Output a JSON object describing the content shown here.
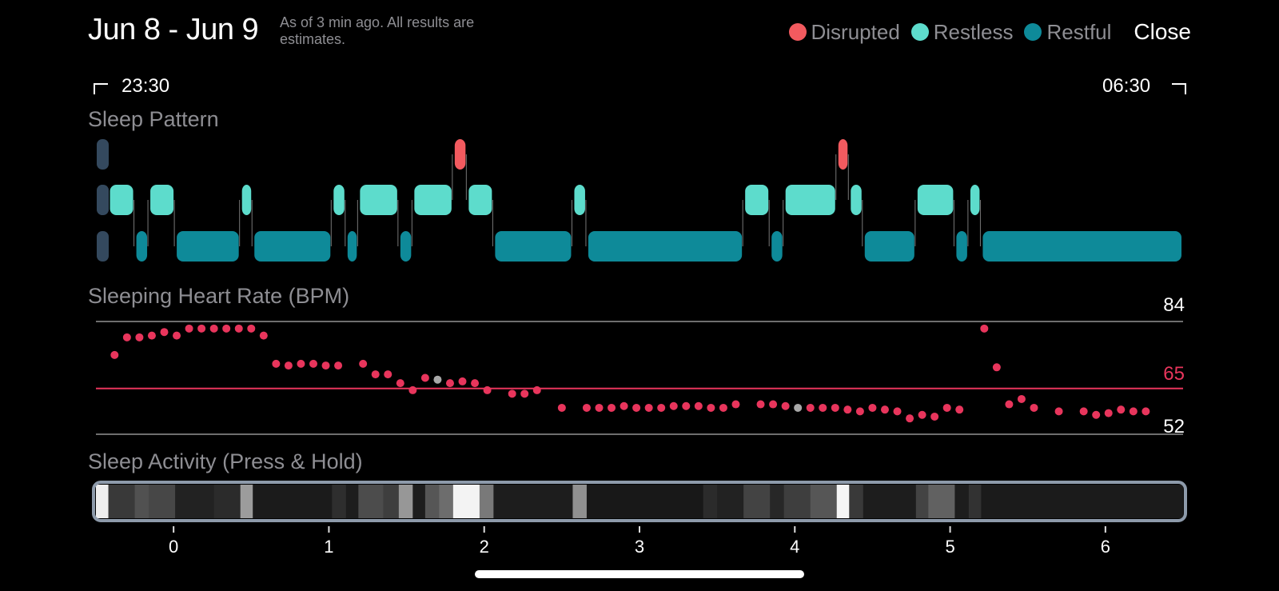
{
  "header": {
    "date_range": "Jun 8 - Jun 9",
    "note": "As of 3 min ago. All results are estimates.",
    "close_label": "Close"
  },
  "legend": [
    {
      "label": "Disrupted",
      "color": "#f25a5f"
    },
    {
      "label": "Restless",
      "color": "#5ddccc"
    },
    {
      "label": "Restful",
      "color": "#0e8a99"
    }
  ],
  "time_range": {
    "start": "23:30",
    "end": "06:30"
  },
  "sleep_pattern": {
    "title": "Sleep Pattern",
    "x_range_hours": [
      0,
      7
    ],
    "colors": {
      "disrupted": "#f25a5f",
      "restless": "#5ddccc",
      "restful": "#0e8a99",
      "awake": "#34495e"
    },
    "segments": [
      {
        "state": "awake",
        "start": 0.0,
        "end": 0.08
      },
      {
        "state": "restless",
        "start": 0.08,
        "end": 0.25
      },
      {
        "state": "restful",
        "start": 0.25,
        "end": 0.34
      },
      {
        "state": "restless",
        "start": 0.34,
        "end": 0.51
      },
      {
        "state": "restful",
        "start": 0.51,
        "end": 0.93
      },
      {
        "state": "restless",
        "start": 0.93,
        "end": 1.01
      },
      {
        "state": "restful",
        "start": 1.01,
        "end": 1.52
      },
      {
        "state": "restless",
        "start": 1.52,
        "end": 1.61
      },
      {
        "state": "restful",
        "start": 1.61,
        "end": 1.69
      },
      {
        "state": "restless",
        "start": 1.69,
        "end": 1.95
      },
      {
        "state": "restful",
        "start": 1.95,
        "end": 2.04
      },
      {
        "state": "restless",
        "start": 2.04,
        "end": 2.3
      },
      {
        "state": "disrupted",
        "start": 2.3,
        "end": 2.39
      },
      {
        "state": "restless",
        "start": 2.39,
        "end": 2.56
      },
      {
        "state": "restful",
        "start": 2.56,
        "end": 3.07
      },
      {
        "state": "restless",
        "start": 3.07,
        "end": 3.16
      },
      {
        "state": "restful",
        "start": 3.16,
        "end": 4.17
      },
      {
        "state": "restless",
        "start": 4.17,
        "end": 4.34
      },
      {
        "state": "restful",
        "start": 4.34,
        "end": 4.43
      },
      {
        "state": "restless",
        "start": 4.43,
        "end": 4.77
      },
      {
        "state": "disrupted",
        "start": 4.77,
        "end": 4.85
      },
      {
        "state": "restless",
        "start": 4.85,
        "end": 4.94
      },
      {
        "state": "restful",
        "start": 4.94,
        "end": 5.28
      },
      {
        "state": "restless",
        "start": 5.28,
        "end": 5.53
      },
      {
        "state": "restful",
        "start": 5.53,
        "end": 5.62
      },
      {
        "state": "restless",
        "start": 5.62,
        "end": 5.7
      },
      {
        "state": "restful",
        "start": 5.7,
        "end": 7.0
      }
    ]
  },
  "heart_rate": {
    "title": "Sleeping Heart Rate (BPM)",
    "max_label": "84",
    "avg_label": "65",
    "min_label": "52",
    "max": 84,
    "avg": 65,
    "min": 52,
    "x_range_hours": [
      0,
      7
    ],
    "dot_color": "#e8355c",
    "highlight_color": "#a8a8a8",
    "avg_line_color": "#e8355c",
    "points": [
      [
        0.12,
        74.5
      ],
      [
        0.2,
        79.5
      ],
      [
        0.28,
        79.5
      ],
      [
        0.36,
        80
      ],
      [
        0.44,
        81
      ],
      [
        0.52,
        80
      ],
      [
        0.6,
        82
      ],
      [
        0.68,
        82
      ],
      [
        0.76,
        82
      ],
      [
        0.84,
        82
      ],
      [
        0.92,
        82
      ],
      [
        1.0,
        82
      ],
      [
        1.08,
        80
      ],
      [
        1.16,
        72
      ],
      [
        1.24,
        71.5
      ],
      [
        1.32,
        72
      ],
      [
        1.4,
        72
      ],
      [
        1.48,
        71.5
      ],
      [
        1.56,
        71.5
      ],
      [
        1.72,
        72
      ],
      [
        1.8,
        69
      ],
      [
        1.88,
        69
      ],
      [
        1.96,
        66.5
      ],
      [
        2.04,
        64.5
      ],
      [
        2.12,
        68
      ],
      [
        2.2,
        67.5,
        "h"
      ],
      [
        2.28,
        66.5
      ],
      [
        2.36,
        67
      ],
      [
        2.44,
        66.5
      ],
      [
        2.52,
        64.5
      ],
      [
        2.68,
        63.5
      ],
      [
        2.76,
        63.5
      ],
      [
        2.84,
        64.5
      ],
      [
        3.0,
        59.5
      ],
      [
        3.16,
        59.5
      ],
      [
        3.24,
        59.5
      ],
      [
        3.32,
        59.5
      ],
      [
        3.4,
        60
      ],
      [
        3.48,
        59.5
      ],
      [
        3.56,
        59.5
      ],
      [
        3.64,
        59.5
      ],
      [
        3.72,
        60
      ],
      [
        3.8,
        60
      ],
      [
        3.88,
        60
      ],
      [
        3.96,
        59.5
      ],
      [
        4.04,
        59.5
      ],
      [
        4.12,
        60.5
      ],
      [
        4.28,
        60.5
      ],
      [
        4.36,
        60.5
      ],
      [
        4.44,
        60
      ],
      [
        4.52,
        59.5,
        "h"
      ],
      [
        4.6,
        59.5
      ],
      [
        4.68,
        59.5
      ],
      [
        4.76,
        59.5
      ],
      [
        4.84,
        59
      ],
      [
        4.92,
        58.5
      ],
      [
        5.0,
        59.5
      ],
      [
        5.08,
        59
      ],
      [
        5.16,
        58.5
      ],
      [
        5.24,
        56.5
      ],
      [
        5.32,
        57.5
      ],
      [
        5.4,
        57
      ],
      [
        5.48,
        59.5
      ],
      [
        5.56,
        59
      ],
      [
        5.72,
        82
      ],
      [
        5.8,
        71
      ],
      [
        5.88,
        60.5
      ],
      [
        5.96,
        62
      ],
      [
        6.04,
        59.5
      ],
      [
        6.2,
        58.5
      ],
      [
        6.36,
        58.5
      ],
      [
        6.44,
        57.5
      ],
      [
        6.52,
        58
      ],
      [
        6.6,
        59
      ],
      [
        6.68,
        58.5
      ],
      [
        6.76,
        58.5
      ]
    ]
  },
  "sleep_activity": {
    "title": "Sleep Activity (Press & Hold)",
    "x_range_hours": [
      0,
      7
    ],
    "bars": [
      {
        "start": 0.0,
        "end": 0.08,
        "value": 0.95
      },
      {
        "start": 0.08,
        "end": 0.25,
        "value": 0.18
      },
      {
        "start": 0.25,
        "end": 0.34,
        "value": 0.28
      },
      {
        "start": 0.34,
        "end": 0.51,
        "value": 0.24
      },
      {
        "start": 0.51,
        "end": 0.76,
        "value": 0.08
      },
      {
        "start": 0.76,
        "end": 0.93,
        "value": 0.12
      },
      {
        "start": 0.93,
        "end": 1.01,
        "value": 0.6
      },
      {
        "start": 1.01,
        "end": 1.52,
        "value": 0.05
      },
      {
        "start": 1.52,
        "end": 1.61,
        "value": 0.13
      },
      {
        "start": 1.61,
        "end": 1.69,
        "value": 0.06
      },
      {
        "start": 1.69,
        "end": 1.85,
        "value": 0.26
      },
      {
        "start": 1.85,
        "end": 1.95,
        "value": 0.2
      },
      {
        "start": 1.95,
        "end": 2.04,
        "value": 0.58
      },
      {
        "start": 2.04,
        "end": 2.12,
        "value": 0.06
      },
      {
        "start": 2.12,
        "end": 2.21,
        "value": 0.3
      },
      {
        "start": 2.21,
        "end": 2.3,
        "value": 0.4
      },
      {
        "start": 2.3,
        "end": 2.47,
        "value": 0.97
      },
      {
        "start": 2.47,
        "end": 2.56,
        "value": 0.45
      },
      {
        "start": 2.56,
        "end": 3.07,
        "value": 0.06
      },
      {
        "start": 3.07,
        "end": 3.16,
        "value": 0.55
      },
      {
        "start": 3.16,
        "end": 3.91,
        "value": 0.04
      },
      {
        "start": 3.91,
        "end": 4.0,
        "value": 0.12
      },
      {
        "start": 4.0,
        "end": 4.17,
        "value": 0.08
      },
      {
        "start": 4.17,
        "end": 4.34,
        "value": 0.22
      },
      {
        "start": 4.34,
        "end": 4.43,
        "value": 0.1
      },
      {
        "start": 4.43,
        "end": 4.6,
        "value": 0.2
      },
      {
        "start": 4.6,
        "end": 4.77,
        "value": 0.3
      },
      {
        "start": 4.77,
        "end": 4.85,
        "value": 0.98
      },
      {
        "start": 4.85,
        "end": 4.94,
        "value": 0.18
      },
      {
        "start": 4.94,
        "end": 5.28,
        "value": 0.06
      },
      {
        "start": 5.28,
        "end": 5.36,
        "value": 0.22
      },
      {
        "start": 5.36,
        "end": 5.53,
        "value": 0.35
      },
      {
        "start": 5.53,
        "end": 5.62,
        "value": 0.06
      },
      {
        "start": 5.62,
        "end": 5.7,
        "value": 0.15
      },
      {
        "start": 5.7,
        "end": 7.0,
        "value": 0.05
      }
    ]
  },
  "axis": {
    "ticks": [
      {
        "hour": 0.5,
        "label": "0"
      },
      {
        "hour": 1.5,
        "label": "1"
      },
      {
        "hour": 2.5,
        "label": "2"
      },
      {
        "hour": 3.5,
        "label": "3"
      },
      {
        "hour": 4.5,
        "label": "4"
      },
      {
        "hour": 5.5,
        "label": "5"
      },
      {
        "hour": 6.5,
        "label": "6"
      }
    ]
  }
}
